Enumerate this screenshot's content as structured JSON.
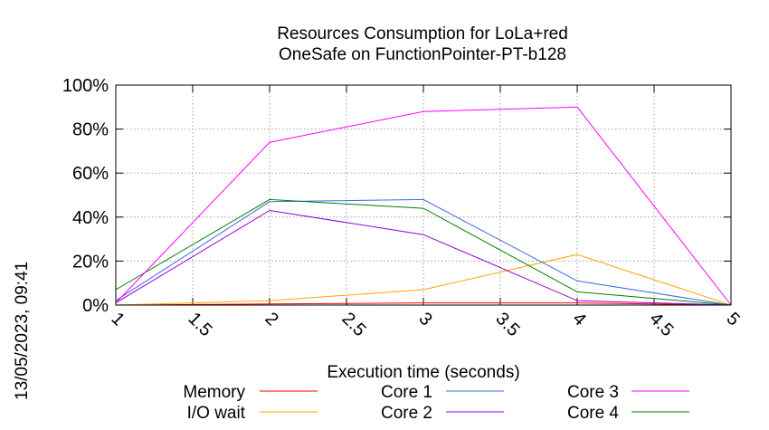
{
  "chart_data": {
    "type": "line",
    "title": "Resources Consumption for LoLa+red",
    "subtitle": "OneSafe on FunctionPointer-PT-b128",
    "xlabel": "Execution time (seconds)",
    "ylabel": "",
    "xlim": [
      1,
      5
    ],
    "ylim": [
      0,
      100
    ],
    "x_ticks": [
      "1",
      "1.5",
      "2",
      "2.5",
      "3",
      "3.5",
      "4",
      "4.5",
      "5"
    ],
    "y_ticks": [
      "0%",
      "20%",
      "40%",
      "60%",
      "80%",
      "100%"
    ],
    "grid": true,
    "legend_position": "bottom",
    "timestamp": "13/05/2023, 09:41",
    "x": [
      1,
      2,
      3,
      4,
      5
    ],
    "series": [
      {
        "name": "Memory",
        "color": "#ff0000",
        "values": [
          0,
          0.5,
          1,
          1,
          0
        ]
      },
      {
        "name": "I/O wait",
        "color": "#ffa500",
        "values": [
          0,
          2,
          7,
          23,
          0
        ]
      },
      {
        "name": "Core 1",
        "color": "#4169e1",
        "values": [
          2,
          47,
          48,
          11,
          0
        ]
      },
      {
        "name": "Core 2",
        "color": "#9400d3",
        "values": [
          1,
          43,
          32,
          2,
          0
        ]
      },
      {
        "name": "Core 3",
        "color": "#ff00ff",
        "values": [
          1,
          74,
          88,
          90,
          0
        ]
      },
      {
        "name": "Core 4",
        "color": "#008000",
        "values": [
          7,
          48,
          44,
          6,
          0
        ]
      }
    ]
  }
}
